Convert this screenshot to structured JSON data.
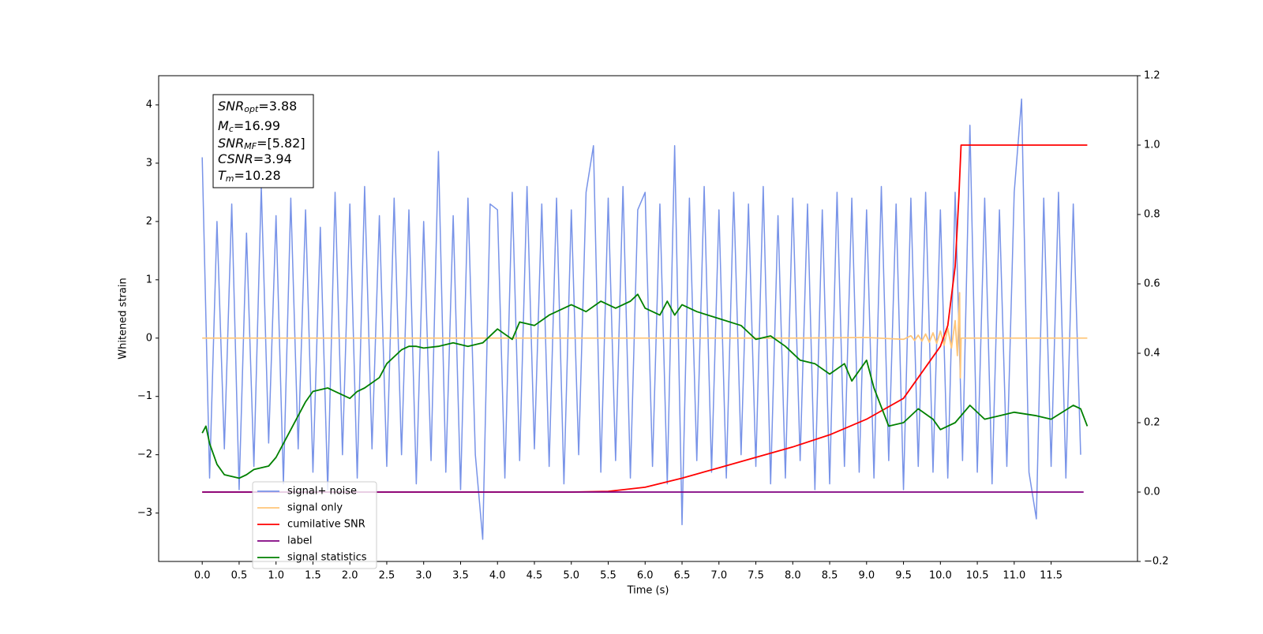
{
  "chart_data": {
    "type": "line",
    "xlabel": "Time (s)",
    "ylabel": "Whitened strain",
    "xlim": [
      -0.59,
      12.67
    ],
    "ylim": [
      -3.83,
      4.5
    ],
    "y2lim": [
      -0.2,
      1.2
    ],
    "xticks": [
      {
        "value": 0,
        "label": "0.0"
      },
      0.5,
      {
        "value": 1,
        "label": "1.0"
      },
      1.5,
      {
        "value": 2,
        "label": "2.0"
      },
      2.5,
      {
        "value": 3,
        "label": "3.0"
      },
      3.5,
      {
        "value": 4,
        "label": "4.0"
      },
      4.5,
      {
        "value": 5,
        "label": "5.0"
      },
      5.5,
      {
        "value": 6,
        "label": "6.0"
      },
      6.5,
      {
        "value": 7,
        "label": "7.0"
      },
      7.5,
      {
        "value": 8,
        "label": "8.0"
      },
      8.5,
      {
        "value": 9,
        "label": "9.0"
      },
      9.5,
      {
        "value": 10,
        "label": "10.0"
      },
      10.5,
      {
        "value": 11,
        "label": "11.0"
      },
      11.5
    ],
    "yticks": [
      {
        "value": -3,
        "label": "−3"
      },
      {
        "value": -2,
        "label": "−2"
      },
      {
        "value": -1,
        "label": "−1"
      },
      0,
      1,
      2,
      3,
      4
    ],
    "y2ticks": [
      {
        "value": -0.2,
        "label": "−0.2"
      },
      {
        "value": 0,
        "label": "0.0"
      },
      0.2,
      0.4,
      0.6,
      0.8,
      {
        "value": 1,
        "label": "1.0"
      },
      1.2
    ],
    "legend": "lower left",
    "annotation": [
      {
        "symbol": "SNR",
        "sub": "opt",
        "text": "=3.88"
      },
      {
        "symbol": "M",
        "sub": "c",
        "text": "=16.99"
      },
      {
        "symbol": "SNR",
        "sub": "MF",
        "text": "=[5.82]"
      },
      {
        "symbol": "CSNR",
        "text": "=3.94"
      },
      {
        "symbol": "T",
        "sub": "m",
        "text": "=10.28"
      }
    ],
    "series": [
      {
        "name": "signal+ noise",
        "color": "#7893e8",
        "x": [
          0.0,
          0.1,
          0.2,
          0.3,
          0.4,
          0.5,
          0.6,
          0.7,
          0.8,
          0.9,
          1.0,
          1.1,
          1.2,
          1.3,
          1.4,
          1.5,
          1.6,
          1.7,
          1.8,
          1.9,
          2.0,
          2.1,
          2.2,
          2.3,
          2.4,
          2.5,
          2.6,
          2.7,
          2.8,
          2.9,
          3.0,
          3.1,
          3.2,
          3.3,
          3.4,
          3.5,
          3.6,
          3.7,
          3.8,
          3.9,
          4.0,
          4.1,
          4.2,
          4.3,
          4.4,
          4.5,
          4.6,
          4.7,
          4.8,
          4.9,
          5.0,
          5.1,
          5.2,
          5.3,
          5.4,
          5.5,
          5.6,
          5.7,
          5.8,
          5.9,
          6.0,
          6.1,
          6.2,
          6.3,
          6.4,
          6.5,
          6.6,
          6.7,
          6.8,
          6.9,
          7.0,
          7.1,
          7.2,
          7.3,
          7.4,
          7.5,
          7.6,
          7.7,
          7.8,
          7.9,
          8.0,
          8.1,
          8.2,
          8.3,
          8.4,
          8.5,
          8.6,
          8.7,
          8.8,
          8.9,
          9.0,
          9.1,
          9.2,
          9.3,
          9.4,
          9.5,
          9.6,
          9.7,
          9.8,
          9.9,
          10.0,
          10.1,
          10.2,
          10.3,
          10.4,
          10.5,
          10.6,
          10.7,
          10.8,
          10.9,
          11.0,
          11.1,
          11.2,
          11.3,
          11.4,
          11.5,
          11.6,
          11.7,
          11.8,
          11.9
        ],
        "values": [
          3.1,
          -2.4,
          2.0,
          -1.9,
          2.3,
          -2.6,
          1.8,
          -2.2,
          2.6,
          -1.8,
          2.1,
          -2.5,
          2.4,
          -1.9,
          2.2,
          -2.3,
          1.9,
          -2.6,
          2.5,
          -2.0,
          2.3,
          -2.4,
          2.6,
          -1.9,
          2.1,
          -2.2,
          2.4,
          -2.0,
          2.2,
          -2.5,
          2.0,
          -2.1,
          3.2,
          -2.3,
          2.1,
          -2.6,
          2.4,
          -2.0,
          -3.45,
          2.3,
          2.2,
          -2.4,
          2.5,
          -2.1,
          2.6,
          -1.9,
          2.3,
          -2.2,
          2.4,
          -2.5,
          2.2,
          -2.0,
          2.5,
          3.3,
          -2.3,
          2.4,
          -2.1,
          2.6,
          -2.4,
          2.2,
          2.5,
          -2.2,
          2.3,
          -2.5,
          3.3,
          -3.2,
          2.4,
          -2.1,
          2.6,
          -2.3,
          2.2,
          -2.4,
          2.5,
          -2.0,
          2.3,
          -2.2,
          2.6,
          -2.5,
          2.1,
          -2.4,
          2.4,
          -2.1,
          2.3,
          -2.6,
          2.2,
          -2.5,
          2.5,
          -2.2,
          2.4,
          -2.3,
          2.2,
          -2.4,
          2.6,
          -2.1,
          2.3,
          -2.6,
          2.4,
          -2.2,
          2.5,
          -2.3,
          2.2,
          -2.4,
          2.5,
          -2.1,
          3.65,
          -2.3,
          2.4,
          -2.5,
          2.2,
          -2.2,
          2.5,
          4.1,
          -2.3,
          -3.1,
          2.4,
          -2.2,
          2.5,
          -2.4,
          2.3,
          -2.0
        ]
      },
      {
        "name": "signal only",
        "color": "#ffc67a",
        "x": [
          0.0,
          8.0,
          9.0,
          9.5,
          9.6,
          9.65,
          9.7,
          9.75,
          9.8,
          9.85,
          9.9,
          9.95,
          10.0,
          10.05,
          10.1,
          10.15,
          10.2,
          10.23,
          10.26,
          10.27,
          10.28,
          11.99
        ],
        "values": [
          0,
          0,
          0.01,
          -0.02,
          0.04,
          -0.04,
          0.05,
          -0.05,
          0.07,
          -0.07,
          0.09,
          -0.09,
          0.12,
          -0.12,
          0.17,
          -0.17,
          0.3,
          -0.3,
          0.78,
          -0.68,
          0,
          0
        ]
      },
      {
        "name": "cumilative SNR",
        "color": "#ff0000",
        "axis": "y2",
        "x": [
          0.0,
          5.0,
          5.5,
          6.0,
          6.5,
          7.0,
          7.5,
          8.0,
          8.5,
          9.0,
          9.5,
          10.0,
          10.1,
          10.2,
          10.25,
          10.28,
          11.99
        ],
        "values": [
          0,
          0,
          0.002,
          0.014,
          0.04,
          0.07,
          0.1,
          0.13,
          0.165,
          0.21,
          0.27,
          0.42,
          0.48,
          0.65,
          0.85,
          1.0,
          1.0
        ]
      },
      {
        "name": "label",
        "color": "#800080",
        "axis": "y2",
        "x": [
          0.0,
          11.94
        ],
        "values": [
          0,
          0
        ]
      },
      {
        "name": "signal statistics",
        "color": "#008000",
        "axis": "y2",
        "x": [
          0,
          0.05,
          0.1,
          0.2,
          0.3,
          0.5,
          0.6,
          0.7,
          0.9,
          1.0,
          1.1,
          1.2,
          1.3,
          1.4,
          1.5,
          1.7,
          1.8,
          2.0,
          2.1,
          2.2,
          2.4,
          2.5,
          2.7,
          2.8,
          2.9,
          3.0,
          3.2,
          3.4,
          3.6,
          3.8,
          4.0,
          4.2,
          4.3,
          4.5,
          4.7,
          4.9,
          5.0,
          5.2,
          5.4,
          5.6,
          5.8,
          5.9,
          6.0,
          6.2,
          6.3,
          6.4,
          6.5,
          6.7,
          7.0,
          7.3,
          7.5,
          7.7,
          7.9,
          8.1,
          8.3,
          8.5,
          8.7,
          8.8,
          9.0,
          9.1,
          9.3,
          9.5,
          9.7,
          9.9,
          10.0,
          10.2,
          10.4,
          10.6,
          10.8,
          11.0,
          11.3,
          11.5,
          11.8,
          11.9,
          11.99
        ],
        "values": [
          0.17,
          0.19,
          0.14,
          0.08,
          0.05,
          0.04,
          0.05,
          0.065,
          0.075,
          0.1,
          0.14,
          0.18,
          0.22,
          0.26,
          0.29,
          0.3,
          0.29,
          0.27,
          0.29,
          0.3,
          0.33,
          0.37,
          0.41,
          0.42,
          0.42,
          0.415,
          0.42,
          0.43,
          0.42,
          0.43,
          0.47,
          0.44,
          0.49,
          0.48,
          0.51,
          0.53,
          0.54,
          0.52,
          0.55,
          0.53,
          0.55,
          0.57,
          0.53,
          0.51,
          0.55,
          0.51,
          0.54,
          0.52,
          0.5,
          0.48,
          0.44,
          0.45,
          0.42,
          0.38,
          0.37,
          0.34,
          0.37,
          0.32,
          0.38,
          0.3,
          0.19,
          0.2,
          0.24,
          0.21,
          0.18,
          0.2,
          0.25,
          0.21,
          0.22,
          0.23,
          0.22,
          0.21,
          0.25,
          0.24,
          0.19
        ]
      }
    ]
  }
}
